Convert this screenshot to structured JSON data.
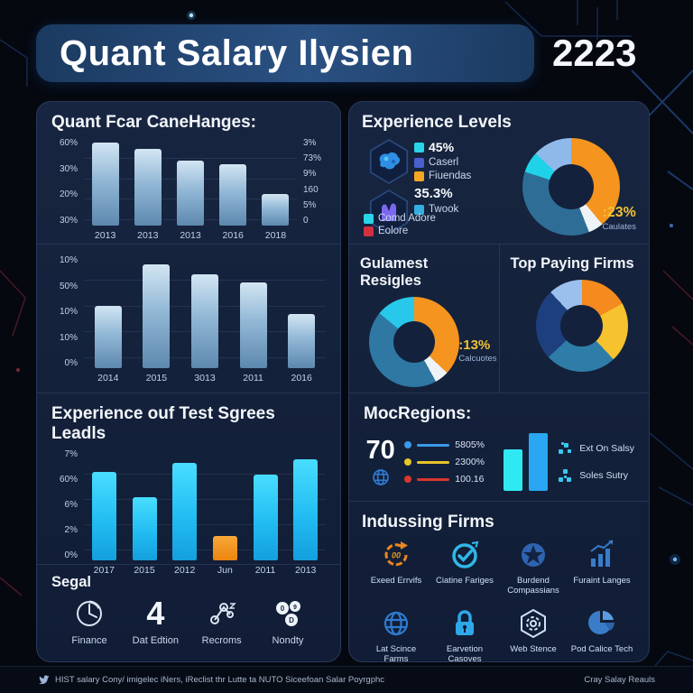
{
  "header": {
    "title": "Quant Salary Ilysien",
    "year": "2223"
  },
  "chart_data": [
    {
      "type": "bar",
      "title": "Quant Fcar CaneHanges:",
      "categories": [
        "2013",
        "2013",
        "2013",
        "2016",
        "2018"
      ],
      "values": [
        95,
        88,
        74,
        70,
        36
      ],
      "y_left": [
        "60%",
        "30%",
        "20%",
        "30%"
      ],
      "y_right": [
        "3%",
        "73%",
        "9%",
        "160",
        "5%",
        "0"
      ],
      "ylim": [
        0,
        100
      ],
      "grid": true
    },
    {
      "type": "bar",
      "title": "",
      "categories": [
        "2014",
        "2015",
        "3013",
        "2011",
        "2016"
      ],
      "values": [
        55,
        92,
        83,
        76,
        48
      ],
      "y_left": [
        "10%",
        "50%",
        "10%",
        "10%",
        "0%"
      ],
      "ylim": [
        0,
        100
      ],
      "grid": true
    },
    {
      "type": "bar",
      "title": "Experience ouf Test Sgrees Leadls",
      "categories": [
        "2017",
        "2015",
        "2012",
        "Jun",
        "2011",
        "2013"
      ],
      "values": [
        80,
        57,
        88,
        22,
        77,
        91
      ],
      "colors_override": {
        "3": "orange"
      },
      "y_left": [
        "7%",
        "60%",
        "6%",
        "2%",
        "0%"
      ],
      "ylim": [
        0,
        100
      ],
      "grid": true
    },
    {
      "type": "pie",
      "title": "Experience Levels",
      "segments": [
        {
          "label": "Fiuendas",
          "color": "#f5941e",
          "value": 39
        },
        {
          "label": "",
          "color": "#eef3f8",
          "value": 5
        },
        {
          "label": "Comd Adore",
          "color": "#2e6e96",
          "value": 36
        },
        {
          "label": "45%",
          "color": "#1fd2e8",
          "value": 7
        },
        {
          "label": "Twook",
          "color": "#8fb9e9",
          "value": 13
        }
      ],
      "callout": {
        "value": ":23%",
        "label": "Caulates"
      }
    },
    {
      "type": "pie",
      "title": "Gulamest Resigles",
      "segments": [
        {
          "color": "#f5941e",
          "value": 37
        },
        {
          "color": "#eef3f8",
          "value": 5
        },
        {
          "color": "#2e78a3",
          "value": 44
        },
        {
          "color": "#27c8ea",
          "value": 14
        }
      ],
      "callout": {
        "value": ":13%",
        "label": "Calcuotes"
      }
    },
    {
      "type": "pie",
      "title": "Top Paying Firms",
      "segments": [
        {
          "color": "#f58a1f",
          "value": 17
        },
        {
          "color": "#f6c22e",
          "value": 21
        },
        {
          "color": "#2e7da8",
          "value": 25
        },
        {
          "color": "#1e3f7e",
          "value": 25
        },
        {
          "color": "#9cc0ee",
          "value": 12
        }
      ]
    }
  ],
  "experience": {
    "title": "Experience Levels",
    "legend": [
      {
        "label": "45%",
        "color": "#2ad4e8"
      },
      {
        "label": "Caserl",
        "color": "#4a5fd0"
      },
      {
        "label": "Fiuendas",
        "color": "#f5a623"
      }
    ],
    "stat": "35.3%",
    "legend2": [
      {
        "label": "Twook",
        "color": "#35aee0"
      }
    ],
    "legend3": [
      {
        "label": "Comd Adore",
        "color": "#2ad4e8"
      },
      {
        "label": "Eolore",
        "color": "#d03040"
      }
    ]
  },
  "regions": {
    "title": "MocRegions:",
    "big_number": "70",
    "lines": [
      {
        "color": "#3a9ae8",
        "value": "5805%"
      },
      {
        "color": "#e8c52a",
        "value": "2300%"
      },
      {
        "color": "#d9372e",
        "value": "100.16"
      }
    ],
    "mini_bars": [
      {
        "color": "#2ee9f2",
        "value": 72
      },
      {
        "color": "#2aa6f2",
        "value": 100
      }
    ],
    "items": [
      {
        "label": "Ext On Salsy"
      },
      {
        "label": "Soles Sutry"
      }
    ]
  },
  "indussing": {
    "title": "Indussing Firms",
    "items": [
      {
        "label": "Exeed Errvifs"
      },
      {
        "label": "Ciatine Fariges"
      },
      {
        "label": "Burdend Compassians"
      },
      {
        "label": "Furaint Langes"
      },
      {
        "label": "Lat Scince Farms"
      },
      {
        "label": "Earvetion Casoves"
      },
      {
        "label": "Web Stence"
      },
      {
        "label": "Pod Calice Tech"
      }
    ]
  },
  "segal": {
    "title": "Segal",
    "items": [
      {
        "label": "Finance"
      },
      {
        "value": "4",
        "label": "Dat Edtion"
      },
      {
        "label": "Recroms"
      },
      {
        "label": "Nondty"
      }
    ]
  },
  "footer": {
    "left": "HIST salary Cony/ imigelec iNers, iReclist thr Lutte ta NUTO Siceefoan Salar Poyrgphc",
    "right": "Cray Salay Reauls"
  }
}
